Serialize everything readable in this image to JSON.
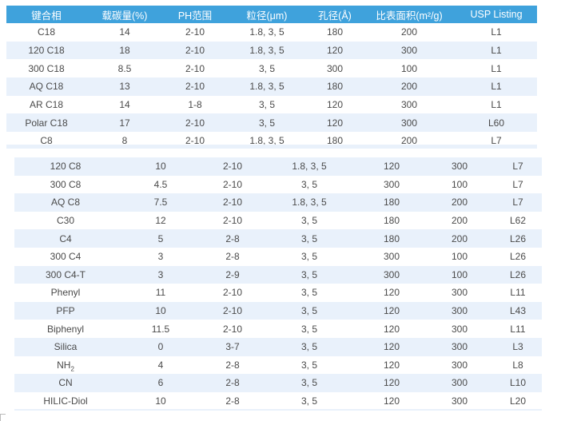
{
  "headers": [
    "键合相",
    "载碳量(%)",
    "PH范围",
    "粒径(μm)",
    "孔径(Å)",
    "比表面积(m²/g)",
    "USP Listing"
  ],
  "top_rows": [
    [
      "C18",
      "14",
      "2-10",
      "1.8, 3, 5",
      "180",
      "200",
      "L1"
    ],
    [
      "120 C18",
      "18",
      "2-10",
      "1.8, 3, 5",
      "120",
      "300",
      "L1"
    ],
    [
      "300 C18",
      "8.5",
      "2-10",
      "3, 5",
      "300",
      "100",
      "L1"
    ],
    [
      "AQ C18",
      "13",
      "2-10",
      "1.8, 3, 5",
      "180",
      "200",
      "L1"
    ],
    [
      "AR C18",
      "14",
      "1-8",
      "3, 5",
      "120",
      "300",
      "L1"
    ],
    [
      "Polar C18",
      "17",
      "2-10",
      "3, 5",
      "120",
      "300",
      "L60"
    ],
    [
      "C8",
      "8",
      "2-10",
      "1.8, 3, 5",
      "180",
      "200",
      "L7"
    ]
  ],
  "bottom_rows": [
    [
      "120 C8",
      "10",
      "2-10",
      "1.8, 3, 5",
      "120",
      "300",
      "L7"
    ],
    [
      "300 C8",
      "4.5",
      "2-10",
      "3, 5",
      "300",
      "100",
      "L7"
    ],
    [
      "AQ C8",
      "7.5",
      "2-10",
      "1.8, 3, 5",
      "180",
      "200",
      "L7"
    ],
    [
      "C30",
      "12",
      "2-10",
      "3, 5",
      "180",
      "200",
      "L62"
    ],
    [
      "C4",
      "5",
      "2-8",
      "3, 5",
      "180",
      "200",
      "L26"
    ],
    [
      "300 C4",
      "3",
      "2-8",
      "3, 5",
      "300",
      "100",
      "L26"
    ],
    [
      "300 C4-T",
      "3",
      "2-9",
      "3, 5",
      "300",
      "100",
      "L26"
    ],
    [
      "Phenyl",
      "11",
      "2-10",
      "3, 5",
      "120",
      "300",
      "L11"
    ],
    [
      "PFP",
      "10",
      "2-10",
      "3, 5",
      "120",
      "300",
      "L43"
    ],
    [
      "Biphenyl",
      "11.5",
      "2-10",
      "3, 5",
      "120",
      "300",
      "L11"
    ],
    [
      "Silica",
      "0",
      "3-7",
      "3, 5",
      "120",
      "300",
      "L3"
    ],
    [
      "NH2",
      "4",
      "2-8",
      "3, 5",
      "120",
      "300",
      "L8"
    ],
    [
      "CN",
      "6",
      "2-8",
      "3, 5",
      "120",
      "300",
      "L10"
    ],
    [
      "HILIC-Diol",
      "10",
      "2-8",
      "3, 5",
      "120",
      "300",
      "L20"
    ]
  ],
  "colors": {
    "header_bg": "#3fa2dc",
    "stripe": "#e9f1fb",
    "text": "#4a4a4a"
  }
}
